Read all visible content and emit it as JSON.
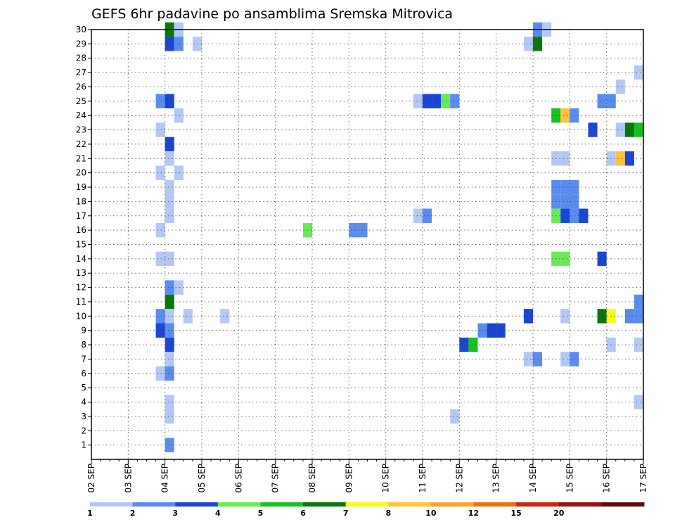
{
  "chart_data": {
    "type": "heatmap",
    "title": "GEFS 6hr padavine po ansamblima Sremska Mitrovica",
    "x_tick_labels": [
      "02 SEP",
      "03 SEP",
      "04 SEP",
      "05 SEP",
      "06 SEP",
      "07 SEP",
      "08 SEP",
      "09 SEP",
      "10 SEP",
      "11 SEP",
      "12 SEP",
      "13 SEP",
      "14 SEP",
      "15 SEP",
      "16 SEP",
      "17 SEP"
    ],
    "x_start": "02 SEP 00Z",
    "x_end": "17 SEP 00Z",
    "time_step_hours": 6,
    "y_tick_labels": [
      "1",
      "2",
      "3",
      "4",
      "5",
      "6",
      "7",
      "8",
      "9",
      "10",
      "11",
      "12",
      "13",
      "14",
      "15",
      "16",
      "17",
      "18",
      "19",
      "20",
      "21",
      "22",
      "23",
      "24",
      "25",
      "26",
      "27",
      "28",
      "29",
      "30"
    ],
    "ylim": [
      0,
      30
    ],
    "grid": true,
    "colorbar": {
      "position": "bottom",
      "labels": [
        "1",
        "2",
        "3",
        "4",
        "5",
        "6",
        "7",
        "8",
        "10",
        "12",
        "15",
        "20"
      ],
      "colors": [
        "#b4c8f5",
        "#5a8cf0",
        "#1946d2",
        "#69eb55",
        "#14c31e",
        "#08780a",
        "#fafa1e",
        "#ffc33c",
        "#ffa028",
        "#f06e14",
        "#c82812",
        "#961414",
        "#640a0a"
      ]
    },
    "cells": [
      {
        "m": 30,
        "t": "04 SEP 00Z",
        "v": 6
      },
      {
        "m": 30,
        "t": "04 SEP 06Z",
        "v": 1
      },
      {
        "m": 30,
        "t": "14 SEP 00Z",
        "v": 2
      },
      {
        "m": 30,
        "t": "14 SEP 06Z",
        "v": 1
      },
      {
        "m": 29,
        "t": "04 SEP 00Z",
        "v": 3
      },
      {
        "m": 29,
        "t": "04 SEP 06Z",
        "v": 2
      },
      {
        "m": 29,
        "t": "04 SEP 18Z",
        "v": 1
      },
      {
        "m": 29,
        "t": "13 SEP 18Z",
        "v": 1
      },
      {
        "m": 29,
        "t": "14 SEP 00Z",
        "v": 6
      },
      {
        "m": 27,
        "t": "16 SEP 18Z",
        "v": 1
      },
      {
        "m": 26,
        "t": "16 SEP 06Z",
        "v": 1
      },
      {
        "m": 25,
        "t": "03 SEP 18Z",
        "v": 2
      },
      {
        "m": 25,
        "t": "04 SEP 00Z",
        "v": 3
      },
      {
        "m": 25,
        "t": "10 SEP 18Z",
        "v": 1
      },
      {
        "m": 25,
        "t": "11 SEP 00Z",
        "v": 3
      },
      {
        "m": 25,
        "t": "11 SEP 06Z",
        "v": 3
      },
      {
        "m": 25,
        "t": "11 SEP 12Z",
        "v": 4
      },
      {
        "m": 25,
        "t": "11 SEP 18Z",
        "v": 2
      },
      {
        "m": 25,
        "t": "15 SEP 18Z",
        "v": 2
      },
      {
        "m": 25,
        "t": "16 SEP 00Z",
        "v": 2
      },
      {
        "m": 24,
        "t": "04 SEP 06Z",
        "v": 1
      },
      {
        "m": 24,
        "t": "14 SEP 12Z",
        "v": 5
      },
      {
        "m": 24,
        "t": "14 SEP 18Z",
        "v": 8
      },
      {
        "m": 24,
        "t": "15 SEP 00Z",
        "v": 2
      },
      {
        "m": 23,
        "t": "03 SEP 18Z",
        "v": 1
      },
      {
        "m": 23,
        "t": "15 SEP 12Z",
        "v": 3
      },
      {
        "m": 23,
        "t": "16 SEP 06Z",
        "v": 1
      },
      {
        "m": 23,
        "t": "16 SEP 12Z",
        "v": 6
      },
      {
        "m": 23,
        "t": "16 SEP 18Z",
        "v": 5
      },
      {
        "m": 22,
        "t": "04 SEP 00Z",
        "v": 3
      },
      {
        "m": 21,
        "t": "04 SEP 00Z",
        "v": 1
      },
      {
        "m": 21,
        "t": "14 SEP 12Z",
        "v": 1
      },
      {
        "m": 21,
        "t": "14 SEP 18Z",
        "v": 1
      },
      {
        "m": 21,
        "t": "16 SEP 00Z",
        "v": 1
      },
      {
        "m": 21,
        "t": "16 SEP 06Z",
        "v": 8
      },
      {
        "m": 21,
        "t": "16 SEP 12Z",
        "v": 3
      },
      {
        "m": 20,
        "t": "03 SEP 18Z",
        "v": 1
      },
      {
        "m": 20,
        "t": "04 SEP 06Z",
        "v": 1
      },
      {
        "m": 19,
        "t": "04 SEP 00Z",
        "v": 1
      },
      {
        "m": 19,
        "t": "14 SEP 12Z",
        "v": 2
      },
      {
        "m": 19,
        "t": "14 SEP 18Z",
        "v": 2
      },
      {
        "m": 19,
        "t": "15 SEP 00Z",
        "v": 2
      },
      {
        "m": 18,
        "t": "04 SEP 00Z",
        "v": 1
      },
      {
        "m": 18,
        "t": "14 SEP 12Z",
        "v": 2
      },
      {
        "m": 18,
        "t": "14 SEP 18Z",
        "v": 2
      },
      {
        "m": 18,
        "t": "15 SEP 00Z",
        "v": 2
      },
      {
        "m": 17,
        "t": "04 SEP 00Z",
        "v": 1
      },
      {
        "m": 17,
        "t": "10 SEP 18Z",
        "v": 1
      },
      {
        "m": 17,
        "t": "11 SEP 00Z",
        "v": 2
      },
      {
        "m": 17,
        "t": "14 SEP 12Z",
        "v": 4
      },
      {
        "m": 17,
        "t": "14 SEP 18Z",
        "v": 3
      },
      {
        "m": 17,
        "t": "15 SEP 00Z",
        "v": 2
      },
      {
        "m": 17,
        "t": "15 SEP 06Z",
        "v": 3
      },
      {
        "m": 16,
        "t": "03 SEP 18Z",
        "v": 1
      },
      {
        "m": 16,
        "t": "07 SEP 18Z",
        "v": 4
      },
      {
        "m": 16,
        "t": "09 SEP 00Z",
        "v": 2
      },
      {
        "m": 16,
        "t": "09 SEP 06Z",
        "v": 2
      },
      {
        "m": 14,
        "t": "03 SEP 18Z",
        "v": 1
      },
      {
        "m": 14,
        "t": "04 SEP 00Z",
        "v": 1
      },
      {
        "m": 14,
        "t": "14 SEP 12Z",
        "v": 4
      },
      {
        "m": 14,
        "t": "14 SEP 18Z",
        "v": 4
      },
      {
        "m": 14,
        "t": "15 SEP 18Z",
        "v": 3
      },
      {
        "m": 12,
        "t": "04 SEP 00Z",
        "v": 2
      },
      {
        "m": 12,
        "t": "04 SEP 06Z",
        "v": 1
      },
      {
        "m": 11,
        "t": "04 SEP 00Z",
        "v": 6
      },
      {
        "m": 11,
        "t": "16 SEP 18Z",
        "v": 2
      },
      {
        "m": 10,
        "t": "03 SEP 18Z",
        "v": 2
      },
      {
        "m": 10,
        "t": "04 SEP 00Z",
        "v": 1
      },
      {
        "m": 10,
        "t": "04 SEP 12Z",
        "v": 1
      },
      {
        "m": 10,
        "t": "05 SEP 12Z",
        "v": 1
      },
      {
        "m": 10,
        "t": "13 SEP 18Z",
        "v": 3
      },
      {
        "m": 10,
        "t": "14 SEP 18Z",
        "v": 1
      },
      {
        "m": 10,
        "t": "15 SEP 18Z",
        "v": 6
      },
      {
        "m": 10,
        "t": "16 SEP 00Z",
        "v": 7
      },
      {
        "m": 10,
        "t": "16 SEP 12Z",
        "v": 2
      },
      {
        "m": 10,
        "t": "16 SEP 18Z",
        "v": 2
      },
      {
        "m": 9,
        "t": "03 SEP 18Z",
        "v": 3
      },
      {
        "m": 9,
        "t": "04 SEP 00Z",
        "v": 2
      },
      {
        "m": 9,
        "t": "12 SEP 12Z",
        "v": 2
      },
      {
        "m": 9,
        "t": "12 SEP 18Z",
        "v": 3
      },
      {
        "m": 9,
        "t": "13 SEP 00Z",
        "v": 3
      },
      {
        "m": 8,
        "t": "04 SEP 00Z",
        "v": 3
      },
      {
        "m": 8,
        "t": "12 SEP 00Z",
        "v": 3
      },
      {
        "m": 8,
        "t": "12 SEP 06Z",
        "v": 5
      },
      {
        "m": 8,
        "t": "16 SEP 00Z",
        "v": 1
      },
      {
        "m": 8,
        "t": "16 SEP 18Z",
        "v": 1
      },
      {
        "m": 7,
        "t": "04 SEP 00Z",
        "v": 1
      },
      {
        "m": 7,
        "t": "13 SEP 18Z",
        "v": 1
      },
      {
        "m": 7,
        "t": "14 SEP 00Z",
        "v": 2
      },
      {
        "m": 7,
        "t": "14 SEP 18Z",
        "v": 1
      },
      {
        "m": 7,
        "t": "15 SEP 00Z",
        "v": 2
      },
      {
        "m": 6,
        "t": "03 SEP 18Z",
        "v": 1
      },
      {
        "m": 6,
        "t": "04 SEP 00Z",
        "v": 2
      },
      {
        "m": 4,
        "t": "04 SEP 00Z",
        "v": 1
      },
      {
        "m": 4,
        "t": "16 SEP 18Z",
        "v": 1
      },
      {
        "m": 3,
        "t": "04 SEP 00Z",
        "v": 1
      },
      {
        "m": 3,
        "t": "11 SEP 18Z",
        "v": 1
      },
      {
        "m": 1,
        "t": "04 SEP 00Z",
        "v": 2
      }
    ]
  }
}
